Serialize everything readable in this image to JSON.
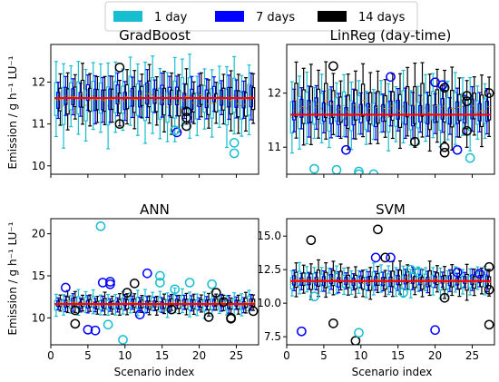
{
  "chart_data": {
    "type": "box",
    "legend": {
      "placement": "top-center",
      "entries": [
        {
          "label": "1 day",
          "color": "#17becf"
        },
        {
          "label": "7 days",
          "color": "#0000ff"
        },
        {
          "label": "14 days",
          "color": "#000000"
        }
      ]
    },
    "shared_ylabel": "Emission  /  g h⁻¹ LU⁻¹",
    "shared_xlabel": "Scenario index",
    "reference_line_color": "#ff0000",
    "mean_line_color": "#ff8c00",
    "panels": [
      {
        "title": "GradBoost",
        "xlim": [
          0,
          28
        ],
        "ylim": [
          9.8,
          12.9
        ],
        "xticks": [
          0,
          5,
          10,
          15,
          20,
          25
        ],
        "yticks": [
          10,
          11,
          12
        ],
        "xticklabels_shown": false,
        "reference": 11.62,
        "box_ranges": {
          "1 day": [
            10.6,
            12.6
          ],
          "7 days": [
            11.1,
            12.2
          ],
          "14 days": [
            10.9,
            12.3
          ]
        },
        "outliers": [
          {
            "scenario": 9,
            "series": "14 days",
            "value": 12.35
          },
          {
            "scenario": 9,
            "series": "14 days",
            "value": 11.0
          },
          {
            "scenario": 17,
            "series": "7 days",
            "value": 10.8
          },
          {
            "scenario": 17,
            "series": "1 day",
            "value": 10.85
          },
          {
            "scenario": 18,
            "series": "14 days",
            "value": 11.3
          },
          {
            "scenario": 18,
            "series": "14 days",
            "value": 11.15
          },
          {
            "scenario": 18,
            "series": "14 days",
            "value": 10.95
          },
          {
            "scenario": 25,
            "series": "1 day",
            "value": 10.55
          },
          {
            "scenario": 25,
            "series": "1 day",
            "value": 10.3
          }
        ]
      },
      {
        "title": "LinReg (day-time)",
        "xlim": [
          0,
          28
        ],
        "ylim": [
          10.5,
          12.9
        ],
        "xticks": [
          0,
          5,
          10,
          15,
          20,
          25
        ],
        "yticks": [
          11,
          12
        ],
        "xticklabels_shown": false,
        "reference": 11.6,
        "box_ranges": {
          "1 day": [
            11.0,
            12.3
          ],
          "7 days": [
            11.2,
            12.1
          ],
          "14 days": [
            11.0,
            12.5
          ]
        },
        "outliers": [
          {
            "scenario": 4,
            "series": "1 day",
            "value": 10.6
          },
          {
            "scenario": 6,
            "series": "14 days",
            "value": 12.5
          },
          {
            "scenario": 7,
            "series": "1 day",
            "value": 10.58
          },
          {
            "scenario": 8,
            "series": "7 days",
            "value": 10.95
          },
          {
            "scenario": 10,
            "series": "1 day",
            "value": 10.5
          },
          {
            "scenario": 10,
            "series": "1 day",
            "value": 10.55
          },
          {
            "scenario": 12,
            "series": "1 day",
            "value": 10.5
          },
          {
            "scenario": 14,
            "series": "7 days",
            "value": 12.3
          },
          {
            "scenario": 17,
            "series": "14 days",
            "value": 11.1
          },
          {
            "scenario": 20,
            "series": "7 days",
            "value": 12.2
          },
          {
            "scenario": 21,
            "series": "7 days",
            "value": 12.15
          },
          {
            "scenario": 21,
            "series": "14 days",
            "value": 12.1
          },
          {
            "scenario": 21,
            "series": "14 days",
            "value": 11.0
          },
          {
            "scenario": 21,
            "series": "14 days",
            "value": 10.9
          },
          {
            "scenario": 23,
            "series": "7 days",
            "value": 10.95
          },
          {
            "scenario": 24,
            "series": "14 days",
            "value": 11.95
          },
          {
            "scenario": 24,
            "series": "14 days",
            "value": 11.85
          },
          {
            "scenario": 24,
            "series": "14 days",
            "value": 11.3
          },
          {
            "scenario": 25,
            "series": "1 day",
            "value": 10.8
          },
          {
            "scenario": 27,
            "series": "14 days",
            "value": 12.0
          }
        ]
      },
      {
        "title": "ANN",
        "xlim": [
          0,
          28
        ],
        "ylim": [
          6.8,
          21.8
        ],
        "xticks": [
          0,
          5,
          10,
          15,
          20,
          25
        ],
        "yticks": [
          10,
          15,
          20
        ],
        "xticklabels_shown": true,
        "reference": 11.65,
        "box_ranges": {
          "1 day": [
            10.3,
            13.3
          ],
          "7 days": [
            10.7,
            12.7
          ],
          "14 days": [
            10.4,
            13.0
          ]
        },
        "outliers": [
          {
            "scenario": 2,
            "series": "7 days",
            "value": 13.6
          },
          {
            "scenario": 3,
            "series": "14 days",
            "value": 10.9
          },
          {
            "scenario": 3,
            "series": "14 days",
            "value": 9.3
          },
          {
            "scenario": 5,
            "series": "7 days",
            "value": 8.6
          },
          {
            "scenario": 6,
            "series": "7 days",
            "value": 8.5
          },
          {
            "scenario": 7,
            "series": "1 day",
            "value": 20.9
          },
          {
            "scenario": 7,
            "series": "7 days",
            "value": 14.2
          },
          {
            "scenario": 8,
            "series": "7 days",
            "value": 14.3
          },
          {
            "scenario": 8,
            "series": "7 days",
            "value": 14.0
          },
          {
            "scenario": 8,
            "series": "1 day",
            "value": 9.2
          },
          {
            "scenario": 10,
            "series": "1 day",
            "value": 7.4
          },
          {
            "scenario": 10,
            "series": "14 days",
            "value": 13.0
          },
          {
            "scenario": 11,
            "series": "14 days",
            "value": 14.1
          },
          {
            "scenario": 12,
            "series": "7 days",
            "value": 10.4
          },
          {
            "scenario": 13,
            "series": "7 days",
            "value": 15.3
          },
          {
            "scenario": 15,
            "series": "1 day",
            "value": 15.0
          },
          {
            "scenario": 15,
            "series": "1 day",
            "value": 14.2
          },
          {
            "scenario": 16,
            "series": "14 days",
            "value": 11.0
          },
          {
            "scenario": 17,
            "series": "1 day",
            "value": 13.4
          },
          {
            "scenario": 19,
            "series": "1 day",
            "value": 14.2
          },
          {
            "scenario": 21,
            "series": "14 days",
            "value": 10.1
          },
          {
            "scenario": 22,
            "series": "1 day",
            "value": 14.0
          },
          {
            "scenario": 22,
            "series": "14 days",
            "value": 13.0
          },
          {
            "scenario": 23,
            "series": "14 days",
            "value": 11.9
          },
          {
            "scenario": 24,
            "series": "14 days",
            "value": 10.0
          },
          {
            "scenario": 24,
            "series": "14 days",
            "value": 9.9
          },
          {
            "scenario": 27,
            "series": "14 days",
            "value": 10.8
          }
        ]
      },
      {
        "title": "SVM",
        "xlim": [
          0,
          28
        ],
        "ylim": [
          6.9,
          16.3
        ],
        "xticks": [
          0,
          5,
          10,
          15,
          20,
          25
        ],
        "yticks": [
          7.5,
          10.0,
          12.5,
          15.0
        ],
        "xticklabels_shown": true,
        "reference": 11.65,
        "box_ranges": {
          "1 day": [
            10.5,
            12.8
          ],
          "7 days": [
            10.9,
            12.5
          ],
          "14 days": [
            10.4,
            13.0
          ]
        },
        "outliers": [
          {
            "scenario": 2,
            "series": "7 days",
            "value": 7.9
          },
          {
            "scenario": 3,
            "series": "14 days",
            "value": 14.7
          },
          {
            "scenario": 4,
            "series": "1 day",
            "value": 10.5
          },
          {
            "scenario": 6,
            "series": "14 days",
            "value": 8.5
          },
          {
            "scenario": 9,
            "series": "14 days",
            "value": 7.2
          },
          {
            "scenario": 10,
            "series": "1 day",
            "value": 7.8
          },
          {
            "scenario": 12,
            "series": "7 days",
            "value": 13.4
          },
          {
            "scenario": 12,
            "series": "14 days",
            "value": 15.5
          },
          {
            "scenario": 13,
            "series": "14 days",
            "value": 13.4
          },
          {
            "scenario": 14,
            "series": "7 days",
            "value": 13.4
          },
          {
            "scenario": 16,
            "series": "1 day",
            "value": 10.8
          },
          {
            "scenario": 17,
            "series": "1 day",
            "value": 12.5
          },
          {
            "scenario": 18,
            "series": "1 day",
            "value": 12.3
          },
          {
            "scenario": 20,
            "series": "7 days",
            "value": 8.0
          },
          {
            "scenario": 21,
            "series": "14 days",
            "value": 10.4
          },
          {
            "scenario": 23,
            "series": "7 days",
            "value": 12.3
          },
          {
            "scenario": 26,
            "series": "7 days",
            "value": 12.2
          },
          {
            "scenario": 27,
            "series": "14 days",
            "value": 12.7
          },
          {
            "scenario": 27,
            "series": "14 days",
            "value": 11.0
          },
          {
            "scenario": 27,
            "series": "14 days",
            "value": 8.4
          }
        ]
      }
    ]
  }
}
